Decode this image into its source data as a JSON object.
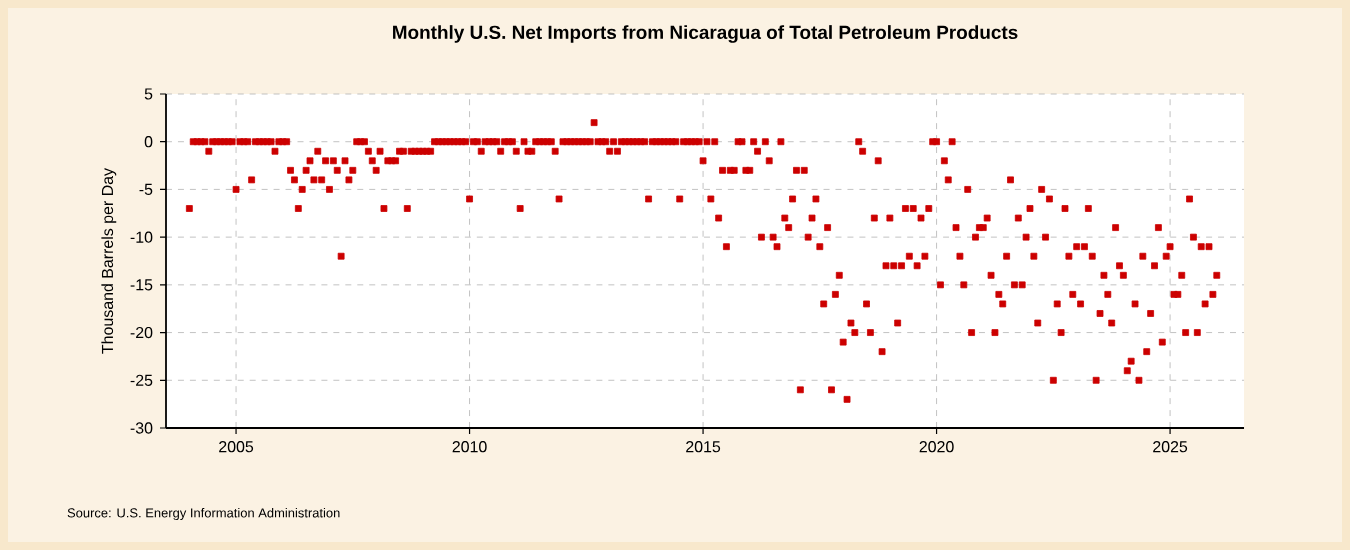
{
  "chart_data": {
    "type": "scatter",
    "title": "Monthly U.S. Net Imports from Nicaragua of Total Petroleum Products",
    "ylabel": "Thousand Barrels per Day",
    "annotations": [
      "Source: U.S. Energy Information Administration"
    ],
    "xlim": [
      "2003-07",
      "2026-08"
    ],
    "xticks": [
      "2005",
      "2010",
      "2015",
      "2020",
      "2025"
    ],
    "ylim": [
      -30,
      5
    ],
    "yticks": [
      -30,
      -25,
      -20,
      -15,
      -10,
      -5,
      0,
      5
    ],
    "grid": true,
    "marker": "square",
    "series": [
      {
        "color": "#cc0000",
        "x": [
          "2004-01",
          "2004-02",
          "2004-03",
          "2004-04",
          "2004-05",
          "2004-06",
          "2004-07",
          "2004-08",
          "2004-09",
          "2004-10",
          "2004-11",
          "2004-12",
          "2005-01",
          "2005-02",
          "2005-03",
          "2005-04",
          "2005-05",
          "2005-06",
          "2005-07",
          "2005-08",
          "2005-09",
          "2005-10",
          "2005-11",
          "2005-12",
          "2006-01",
          "2006-02",
          "2006-03",
          "2006-04",
          "2006-05",
          "2006-06",
          "2006-07",
          "2006-08",
          "2006-09",
          "2006-10",
          "2006-11",
          "2006-12",
          "2007-01",
          "2007-02",
          "2007-03",
          "2007-04",
          "2007-05",
          "2007-06",
          "2007-07",
          "2007-08",
          "2007-09",
          "2007-10",
          "2007-11",
          "2007-12",
          "2008-01",
          "2008-02",
          "2008-03",
          "2008-04",
          "2008-05",
          "2008-06",
          "2008-07",
          "2008-08",
          "2008-09",
          "2008-10",
          "2008-11",
          "2008-12",
          "2009-01",
          "2009-02",
          "2009-03",
          "2009-04",
          "2009-05",
          "2009-06",
          "2009-07",
          "2009-08",
          "2009-09",
          "2009-10",
          "2009-11",
          "2009-12",
          "2010-01",
          "2010-02",
          "2010-03",
          "2010-04",
          "2010-05",
          "2010-06",
          "2010-07",
          "2010-08",
          "2010-09",
          "2010-10",
          "2010-11",
          "2010-12",
          "2011-01",
          "2011-02",
          "2011-03",
          "2011-04",
          "2011-05",
          "2011-06",
          "2011-07",
          "2011-08",
          "2011-09",
          "2011-10",
          "2011-11",
          "2011-12",
          "2012-01",
          "2012-02",
          "2012-03",
          "2012-04",
          "2012-05",
          "2012-06",
          "2012-07",
          "2012-08",
          "2012-09",
          "2012-10",
          "2012-11",
          "2012-12",
          "2013-01",
          "2013-02",
          "2013-03",
          "2013-04",
          "2013-05",
          "2013-06",
          "2013-07",
          "2013-08",
          "2013-09",
          "2013-10",
          "2013-11",
          "2013-12",
          "2014-01",
          "2014-02",
          "2014-03",
          "2014-04",
          "2014-05",
          "2014-06",
          "2014-07",
          "2014-08",
          "2014-09",
          "2014-10",
          "2014-11",
          "2014-12",
          "2015-01",
          "2015-02",
          "2015-03",
          "2015-04",
          "2015-05",
          "2015-06",
          "2015-07",
          "2015-08",
          "2015-09",
          "2015-10",
          "2015-11",
          "2015-12",
          "2016-01",
          "2016-02",
          "2016-03",
          "2016-04",
          "2016-05",
          "2016-06",
          "2016-07",
          "2016-08",
          "2016-09",
          "2016-10",
          "2016-11",
          "2016-12",
          "2017-01",
          "2017-02",
          "2017-03",
          "2017-04",
          "2017-05",
          "2017-06",
          "2017-07",
          "2017-08",
          "2017-09",
          "2017-10",
          "2017-11",
          "2017-12",
          "2018-01",
          "2018-02",
          "2018-03",
          "2018-04",
          "2018-05",
          "2018-06",
          "2018-07",
          "2018-08",
          "2018-09",
          "2018-10",
          "2018-11",
          "2018-12",
          "2019-01",
          "2019-02",
          "2019-03",
          "2019-04",
          "2019-05",
          "2019-06",
          "2019-07",
          "2019-08",
          "2019-09",
          "2019-10",
          "2019-11",
          "2019-12",
          "2020-01",
          "2020-02",
          "2020-03",
          "2020-04",
          "2020-05",
          "2020-06",
          "2020-07",
          "2020-08",
          "2020-09",
          "2020-10",
          "2020-11",
          "2020-12",
          "2021-01",
          "2021-02",
          "2021-03",
          "2021-04",
          "2021-05",
          "2021-06",
          "2021-07",
          "2021-08",
          "2021-09",
          "2021-10",
          "2021-11",
          "2021-12",
          "2022-01",
          "2022-02",
          "2022-03",
          "2022-04",
          "2022-05",
          "2022-06",
          "2022-07",
          "2022-08",
          "2022-09",
          "2022-10",
          "2022-11",
          "2022-12",
          "2023-01",
          "2023-02",
          "2023-03",
          "2023-04",
          "2023-05",
          "2023-06",
          "2023-07",
          "2023-08",
          "2023-09",
          "2023-10",
          "2023-11",
          "2023-12",
          "2024-01",
          "2024-02",
          "2024-03",
          "2024-04",
          "2024-05",
          "2024-06",
          "2024-07",
          "2024-08",
          "2024-09",
          "2024-10",
          "2024-11",
          "2024-12",
          "2025-01",
          "2025-02",
          "2025-03",
          "2025-04",
          "2025-05",
          "2025-06",
          "2025-07",
          "2025-08",
          "2025-09",
          "2025-10",
          "2025-11",
          "2025-12",
          "2026-01"
        ],
        "values": [
          -7,
          0,
          0,
          0,
          0,
          -1,
          0,
          0,
          0,
          0,
          0,
          0,
          -5,
          0,
          0,
          0,
          -4,
          0,
          0,
          0,
          0,
          0,
          -1,
          0,
          0,
          0,
          -3,
          -4,
          -7,
          -5,
          -3,
          -2,
          -4,
          -1,
          -4,
          -2,
          -5,
          -2,
          -3,
          -12,
          -2,
          -4,
          -3,
          0,
          0,
          0,
          -1,
          -2,
          -3,
          -1,
          -7,
          -2,
          -2,
          -2,
          -1,
          -1,
          -7,
          -1,
          -1,
          -1,
          -1,
          -1,
          -1,
          0,
          0,
          0,
          0,
          0,
          0,
          0,
          0,
          0,
          -6,
          0,
          0,
          -1,
          0,
          0,
          0,
          0,
          -1,
          0,
          0,
          0,
          -1,
          -7,
          0,
          -1,
          -1,
          0,
          0,
          0,
          0,
          0,
          -1,
          -6,
          0,
          0,
          0,
          0,
          0,
          0,
          0,
          0,
          2,
          0,
          0,
          0,
          -1,
          0,
          -1,
          0,
          0,
          0,
          0,
          0,
          0,
          0,
          -6,
          0,
          0,
          0,
          0,
          0,
          0,
          0,
          -6,
          0,
          0,
          0,
          0,
          0,
          -2,
          0,
          -6,
          0,
          -8,
          -3,
          -11,
          -3,
          -3,
          0,
          0,
          -3,
          -3,
          0,
          -1,
          -10,
          0,
          -2,
          -10,
          -11,
          0,
          -8,
          -9,
          -6,
          -3,
          -26,
          -3,
          -10,
          -8,
          -6,
          -11,
          -17,
          -9,
          -26,
          -16,
          -14,
          -21,
          -27,
          -19,
          -20,
          0,
          -1,
          -17,
          -20,
          -8,
          -2,
          -22,
          -13,
          -8,
          -13,
          -19,
          -13,
          -7,
          -12,
          -7,
          -13,
          -8,
          -12,
          -7,
          0,
          0,
          -15,
          -2,
          -4,
          0,
          -9,
          -12,
          -15,
          -5,
          -20,
          -10,
          -9,
          -9,
          -8,
          -14,
          -20,
          -16,
          -17,
          -12,
          -4,
          -15,
          -8,
          -15,
          -10,
          -7,
          -12,
          -19,
          -5,
          -10,
          -6,
          -25,
          -17,
          -20,
          -7,
          -12,
          -16,
          -11,
          -17,
          -11,
          -7,
          -12,
          -25,
          -18,
          -14,
          -16,
          -19,
          -9,
          -13,
          -14,
          -24,
          -23,
          -17,
          -25,
          -12,
          -22,
          -18,
          -13,
          -9,
          -21,
          -12,
          -11,
          -16,
          -16,
          -14,
          -20,
          -6,
          -10,
          -20,
          -11,
          -17,
          -11,
          -16,
          -14
        ]
      }
    ]
  }
}
